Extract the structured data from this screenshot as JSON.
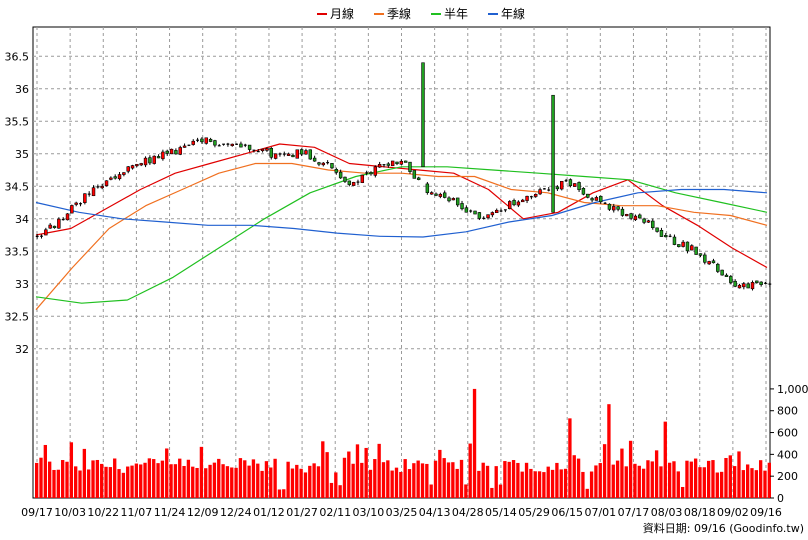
{
  "chart_data": {
    "type": "candlestick",
    "legend": {
      "placement": "top-center",
      "items": [
        {
          "name": "月線",
          "color": "#e00000"
        },
        {
          "name": "季線",
          "color": "#f07020"
        },
        {
          "name": "半年",
          "color": "#20c020"
        },
        {
          "name": "年線",
          "color": "#2060d0"
        }
      ]
    },
    "price_axis": {
      "ticks": [
        "36.5",
        "36",
        "35.5",
        "35",
        "34.5",
        "34",
        "33.5",
        "33",
        "32.5",
        "32"
      ],
      "ylim": [
        31.55,
        36.95
      ],
      "grid": true
    },
    "volume_axis": {
      "ticks": [
        "1,000",
        "800",
        "600",
        "400",
        "200",
        "0"
      ],
      "ylim": [
        0,
        1100
      ],
      "color": "#ff0000"
    },
    "x_tick_labels": [
      "09/17",
      "10/03",
      "10/22",
      "11/07",
      "11/24",
      "12/09",
      "12/24",
      "01/12",
      "01/27",
      "02/11",
      "03/10",
      "03/25",
      "04/13",
      "04/28",
      "05/14",
      "05/29",
      "06/15",
      "07/01",
      "07/17",
      "08/03",
      "08/18",
      "09/02",
      "09/16"
    ],
    "candle_colors": {
      "up": "#ff0000",
      "down": "#20a020",
      "neutral": "#000000"
    },
    "spikes": [
      {
        "date": "03/25",
        "high": 36.4,
        "low": 34.8
      },
      {
        "date": "05/29",
        "high": 35.9,
        "low": 34.1
      }
    ],
    "ma_series": [
      {
        "name": "月線",
        "values": [
          33.75,
          33.85,
          34.15,
          34.45,
          34.7,
          34.85,
          35.0,
          35.15,
          35.1,
          34.85,
          34.8,
          34.75,
          34.7,
          34.45,
          34.0,
          34.1,
          34.4,
          34.6,
          34.2,
          33.9,
          33.55,
          33.25
        ]
      },
      {
        "name": "季線",
        "values": [
          32.6,
          33.25,
          33.85,
          34.2,
          34.45,
          34.7,
          34.85,
          34.85,
          34.75,
          34.7,
          34.7,
          34.65,
          34.65,
          34.45,
          34.4,
          34.25,
          34.2,
          34.2,
          34.1,
          34.05,
          33.9
        ]
      },
      {
        "name": "半年",
        "values": [
          32.8,
          32.7,
          32.75,
          33.1,
          33.55,
          34.0,
          34.4,
          34.65,
          34.8,
          34.8,
          34.75,
          34.7,
          34.65,
          34.6,
          34.4,
          34.25,
          34.1
        ]
      },
      {
        "name": "年線",
        "values": [
          34.25,
          34.1,
          34.0,
          33.95,
          33.9,
          33.9,
          33.85,
          33.78,
          33.73,
          33.72,
          33.8,
          33.95,
          34.05,
          34.25,
          34.4,
          34.45,
          34.45,
          34.4
        ]
      }
    ],
    "footer": "資料日期: 09/16  (Goodinfo.tw)"
  }
}
